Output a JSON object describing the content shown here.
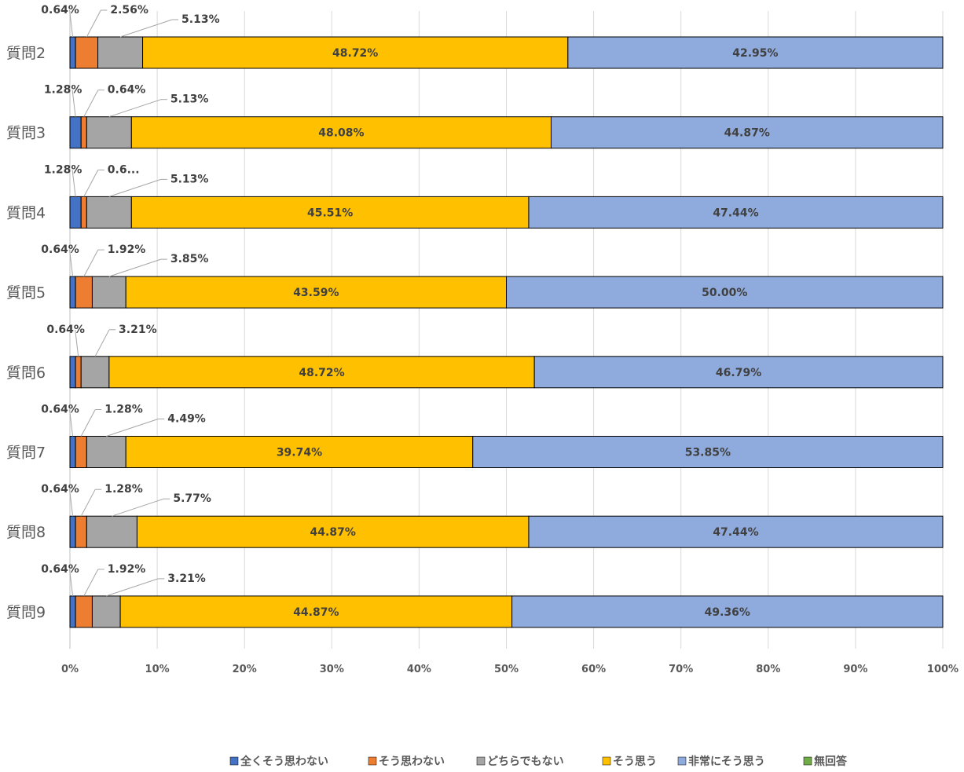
{
  "chart_data": {
    "type": "bar",
    "orientation": "horizontal",
    "stacked": "percent",
    "categories": [
      "質問2",
      "質問3",
      "質問4",
      "質問5",
      "質問6",
      "質問7",
      "質問8",
      "質問9"
    ],
    "series": [
      {
        "name": "全くそう思わない",
        "color": "#4472c4",
        "values": [
          0.64,
          1.28,
          1.28,
          0.64,
          0.64,
          0.64,
          0.64,
          0.64
        ],
        "labels": [
          "0.64%",
          "1.28%",
          "1.28%",
          "0.64%",
          "",
          "0.64%",
          "0.64%",
          "0.64%"
        ]
      },
      {
        "name": "そう思わない",
        "color": "#ed7d31",
        "values": [
          2.56,
          0.64,
          0.64,
          1.92,
          0.64,
          1.28,
          1.28,
          1.92
        ],
        "labels": [
          "2.56%",
          "0.64%",
          "0.6...",
          "1.92%",
          "0.64%",
          "1.28%",
          "1.28%",
          "1.92%"
        ]
      },
      {
        "name": "どちらでもない",
        "color": "#a5a5a5",
        "values": [
          5.13,
          5.13,
          5.13,
          3.85,
          3.21,
          4.49,
          5.77,
          3.21
        ],
        "labels": [
          "5.13%",
          "5.13%",
          "5.13%",
          "3.85%",
          "3.21%",
          "4.49%",
          "5.77%",
          "3.21%"
        ]
      },
      {
        "name": "そう思う",
        "color": "#ffc000",
        "values": [
          48.72,
          48.08,
          45.51,
          43.59,
          48.72,
          39.74,
          44.87,
          44.87
        ],
        "labels": [
          "48.72%",
          "48.08%",
          "45.51%",
          "43.59%",
          "48.72%",
          "39.74%",
          "44.87%",
          "44.87%"
        ]
      },
      {
        "name": "非常にそう思う",
        "color": "#8faadc",
        "values": [
          42.95,
          44.87,
          47.44,
          50.0,
          46.79,
          53.85,
          47.44,
          49.36
        ],
        "labels": [
          "42.95%",
          "44.87%",
          "47.44%",
          "50.00%",
          "46.79%",
          "53.85%",
          "47.44%",
          "49.36%"
        ]
      },
      {
        "name": "無回答",
        "color": "#70ad47",
        "values": [
          0,
          0,
          0,
          0,
          0,
          0,
          0,
          0
        ],
        "labels": [
          "",
          "",
          "",
          "",
          "",
          "",
          "",
          ""
        ]
      }
    ],
    "xlim": [
      0,
      100
    ],
    "x_ticks": [
      "0%",
      "10%",
      "20%",
      "30%",
      "40%",
      "50%",
      "60%",
      "70%",
      "80%",
      "90%",
      "100%"
    ],
    "grid": true,
    "legend_position": "bottom"
  }
}
